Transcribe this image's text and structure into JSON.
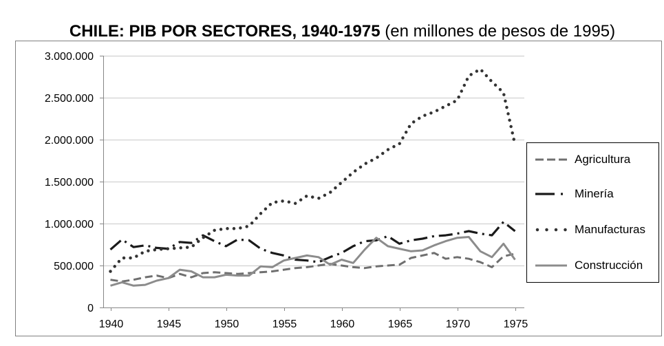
{
  "chart_data": {
    "type": "line",
    "title": "CHILE: PIB POR SECTORES, 1940-1975",
    "subtitle": "(en millones de pesos de 1995)",
    "x": [
      1940,
      1941,
      1942,
      1943,
      1944,
      1945,
      1946,
      1947,
      1948,
      1949,
      1950,
      1951,
      1952,
      1953,
      1954,
      1955,
      1956,
      1957,
      1958,
      1959,
      1960,
      1961,
      1962,
      1963,
      1964,
      1965,
      1966,
      1967,
      1968,
      1969,
      1970,
      1971,
      1972,
      1973,
      1974,
      1975
    ],
    "xlim": [
      1940,
      1975
    ],
    "ylim": [
      0,
      3000000
    ],
    "x_tick_values": [
      1940,
      1945,
      1950,
      1955,
      1960,
      1965,
      1970,
      1975
    ],
    "x_tick_labels": [
      "1940",
      "1945",
      "1950",
      "1955",
      "1960",
      "1965",
      "1970",
      "1975"
    ],
    "y_tick_values": [
      0,
      500000,
      1000000,
      1500000,
      2000000,
      2500000,
      3000000
    ],
    "y_tick_labels": [
      "0",
      "500.000",
      "1.000.000",
      "1.500.000",
      "2.000.000",
      "2.500.000",
      "3.000.000"
    ],
    "grid": "horizontal",
    "legend_position": "right",
    "series": [
      {
        "name": "Agricultura",
        "color": "#6f6f6f",
        "line_style": "dashed",
        "values": [
          330000,
          310000,
          330000,
          360000,
          380000,
          350000,
          400000,
          360000,
          410000,
          420000,
          410000,
          400000,
          410000,
          420000,
          430000,
          450000,
          470000,
          480000,
          500000,
          520000,
          500000,
          480000,
          470000,
          490000,
          500000,
          510000,
          590000,
          620000,
          650000,
          580000,
          600000,
          580000,
          540000,
          480000,
          610000,
          640000
        ]
      },
      {
        "name": "Minería",
        "color": "#1a1a1a",
        "line_style": "dash-dot",
        "values": [
          690000,
          810000,
          720000,
          740000,
          710000,
          700000,
          780000,
          770000,
          860000,
          790000,
          730000,
          810000,
          800000,
          700000,
          650000,
          620000,
          570000,
          560000,
          540000,
          600000,
          650000,
          730000,
          790000,
          800000,
          850000,
          760000,
          800000,
          820000,
          850000,
          860000,
          880000,
          910000,
          880000,
          860000,
          1020000,
          910000
        ]
      },
      {
        "name": "Manufacturas",
        "color": "#333333",
        "line_style": "dotted",
        "values": [
          430000,
          590000,
          590000,
          670000,
          690000,
          700000,
          710000,
          720000,
          830000,
          920000,
          940000,
          940000,
          970000,
          1120000,
          1250000,
          1270000,
          1240000,
          1330000,
          1300000,
          1370000,
          1490000,
          1610000,
          1710000,
          1780000,
          1880000,
          1950000,
          2190000,
          2280000,
          2330000,
          2400000,
          2470000,
          2760000,
          2840000,
          2690000,
          2560000,
          1940000
        ]
      },
      {
        "name": "Construcción",
        "color": "#8c8c8c",
        "line_style": "solid",
        "values": [
          260000,
          300000,
          260000,
          270000,
          320000,
          350000,
          450000,
          430000,
          360000,
          360000,
          390000,
          380000,
          380000,
          490000,
          480000,
          560000,
          590000,
          620000,
          600000,
          510000,
          570000,
          530000,
          690000,
          830000,
          730000,
          700000,
          670000,
          680000,
          740000,
          790000,
          830000,
          840000,
          670000,
          600000,
          760000,
          570000
        ]
      }
    ]
  }
}
